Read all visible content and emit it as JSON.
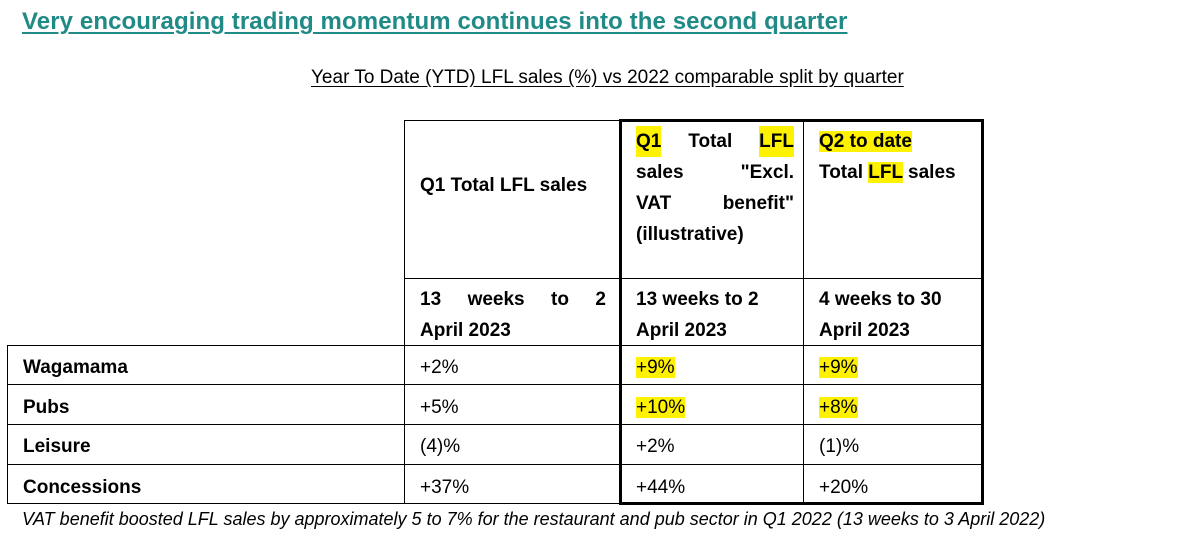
{
  "headline": "Very encouraging trading momentum continues into the second quarter",
  "subtitle": "Year To Date (YTD) LFL sales (%) vs 2022 comparable split by quarter",
  "table": {
    "headers": {
      "col1": "Q1 Total LFL sales",
      "col2": {
        "line1": [
          "Q1",
          "Total",
          "LFL"
        ],
        "line2": [
          "sales",
          "\"Excl."
        ],
        "line3": [
          "VAT",
          "benefit\""
        ],
        "line4": "(illustrative)"
      },
      "col3": {
        "line1": "Q2 to date",
        "line2_pre": "Total ",
        "line2_hl": "LFL",
        "line2_post": " sales"
      }
    },
    "periods": {
      "col1": {
        "line1": [
          "13",
          "weeks",
          "to",
          "2"
        ],
        "line2": "April 2023"
      },
      "col2": {
        "line1": "13 weeks to 2",
        "line2": "April 2023"
      },
      "col3": {
        "line1": "4 weeks to 30",
        "line2": "April 2023"
      }
    },
    "rows": [
      {
        "label": "Wagamama",
        "q1": "+2%",
        "q1_excl": "+9%",
        "q2": "+9%"
      },
      {
        "label": "Pubs",
        "q1": "+5%",
        "q1_excl": "+10%",
        "q2": "+8%"
      },
      {
        "label": "Leisure",
        "q1": "(4)%",
        "q1_excl": "+2%",
        "q2": "(1)%"
      },
      {
        "label": "Concessions",
        "q1": "+37%",
        "q1_excl": "+44%",
        "q2": "+20%"
      }
    ]
  },
  "footnote": "VAT benefit boosted LFL sales by approximately 5 to 7% for the restaurant and pub sector in Q1 2022 (13 weeks to 3 April 2022)",
  "colors": {
    "headline": "#1f8a86",
    "highlight": "#fff200",
    "border": "#000000"
  }
}
